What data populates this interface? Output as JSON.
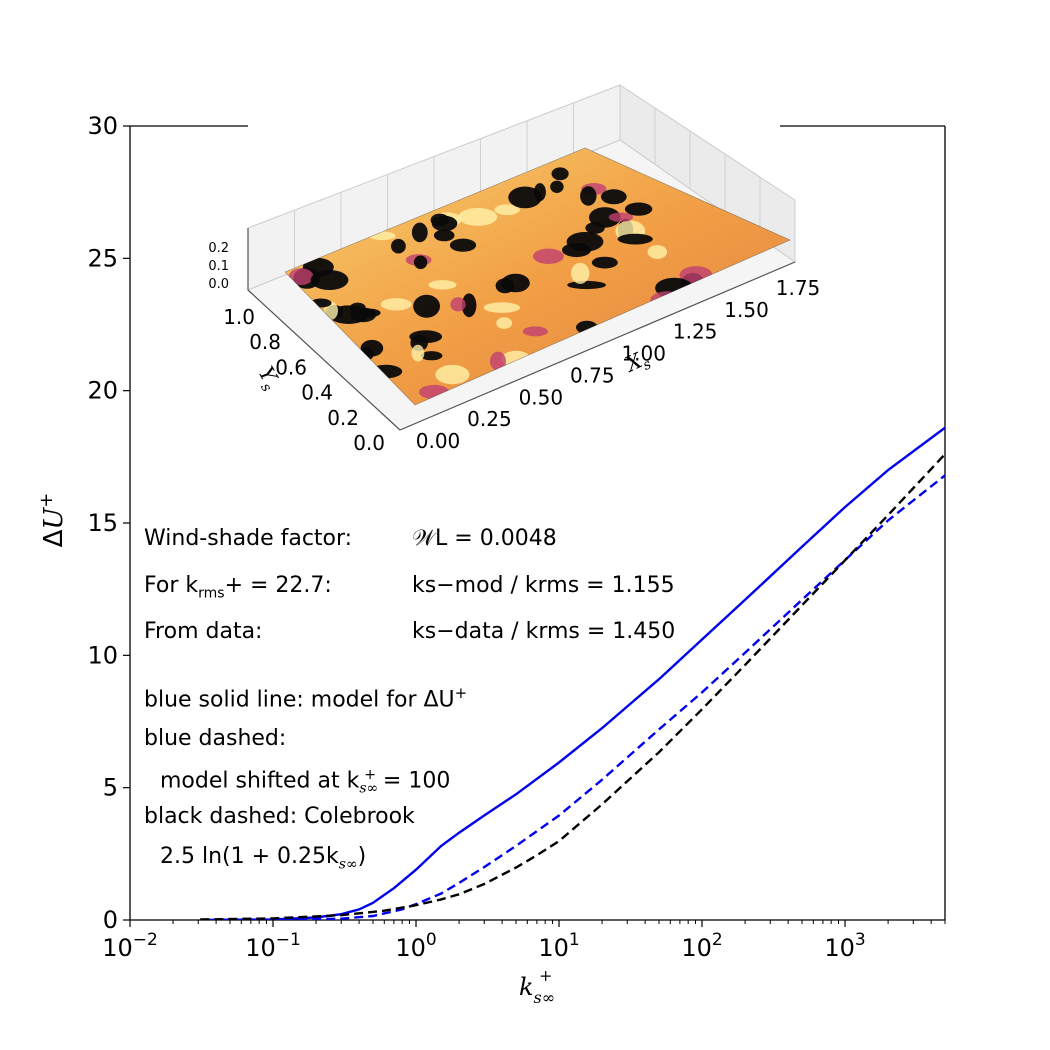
{
  "chart_data": {
    "type": "line",
    "xscale": "log",
    "xlim": [
      0.01,
      5000
    ],
    "ylim": [
      0,
      30
    ],
    "xlabel": "k_s∞^+",
    "ylabel": "ΔU^+",
    "x_tick_exponents": [
      "-2",
      "-1",
      "0",
      "1",
      "2",
      "3"
    ],
    "y_ticks": [
      "0",
      "5",
      "10",
      "15",
      "20",
      "25",
      "30"
    ],
    "series": [
      {
        "name": "model for ΔU+",
        "color": "#0000ee",
        "style": "solid",
        "x": [
          0.031,
          0.1,
          0.2,
          0.3,
          0.4,
          0.5,
          0.7,
          1.0,
          1.5,
          2,
          3,
          5,
          10,
          20,
          50,
          100,
          200,
          500,
          1000,
          2000,
          5000
        ],
        "y": [
          0.0,
          0.02,
          0.1,
          0.22,
          0.4,
          0.65,
          1.2,
          1.9,
          2.8,
          3.3,
          3.95,
          4.75,
          5.95,
          7.25,
          9.1,
          10.6,
          12.1,
          14.1,
          15.6,
          17.0,
          18.6
        ]
      },
      {
        "name": "model shifted at k_s∞^+ = 100",
        "color": "#0000ee",
        "style": "dashed",
        "x": [
          0.031,
          0.1,
          0.3,
          0.5,
          0.8,
          1.0,
          1.5,
          2,
          3,
          5,
          10,
          20,
          50,
          100,
          200,
          500,
          1000,
          2000,
          5000
        ],
        "y": [
          0.0,
          0.0,
          0.05,
          0.15,
          0.4,
          0.6,
          1.0,
          1.4,
          2.0,
          2.8,
          3.95,
          5.3,
          7.2,
          8.6,
          10.1,
          12.1,
          13.6,
          15.1,
          16.8
        ]
      },
      {
        "name": "Colebrook 2.5 ln(1 + 0.25 k_s∞)",
        "color": "#000000",
        "style": "dashed",
        "x": [
          0.031,
          0.1,
          0.3,
          0.6,
          1.0,
          1.5,
          2,
          3,
          5,
          7,
          10,
          20,
          50,
          100,
          200,
          500,
          1000,
          2000,
          5000
        ],
        "y": [
          0.02,
          0.06,
          0.18,
          0.35,
          0.56,
          0.78,
          0.97,
          1.36,
          1.98,
          2.45,
          2.98,
          4.37,
          6.34,
          7.96,
          9.64,
          11.89,
          13.59,
          15.3,
          17.6
        ]
      }
    ],
    "annotations": {
      "line1_label": "Wind-shade factor:",
      "line1_value": "𝒲L = 0.0048",
      "line2_label_prefix": "For k",
      "line2_label_sub": "rms",
      "line2_label_suffix": "+ =  22.7:",
      "line2_value": "ks−mod / krms = 1.155",
      "line3_label": "From data:",
      "line3_value": "ks−data / krms = 1.450",
      "legend_line1": "blue solid line: model for ΔU",
      "legend_line2": "blue dashed:",
      "legend_line3": "model shifted at k",
      "legend_line3_eq": " = 100",
      "legend_line4": "black dashed: Colebrook",
      "legend_line5": "2.5 ln(1 + 0.25k"
    },
    "inset": {
      "type": "surface",
      "x_label": "Xs",
      "y_label": "Ys",
      "x_ticks": [
        "0.00",
        "0.25",
        "0.50",
        "0.75",
        "1.00",
        "1.25",
        "1.50",
        "1.75"
      ],
      "y_ticks": [
        "0.0",
        "0.2",
        "0.4",
        "0.6",
        "0.8",
        "1.0"
      ],
      "z_ticks": [
        "0.0",
        "0.1",
        "0.2"
      ]
    }
  }
}
